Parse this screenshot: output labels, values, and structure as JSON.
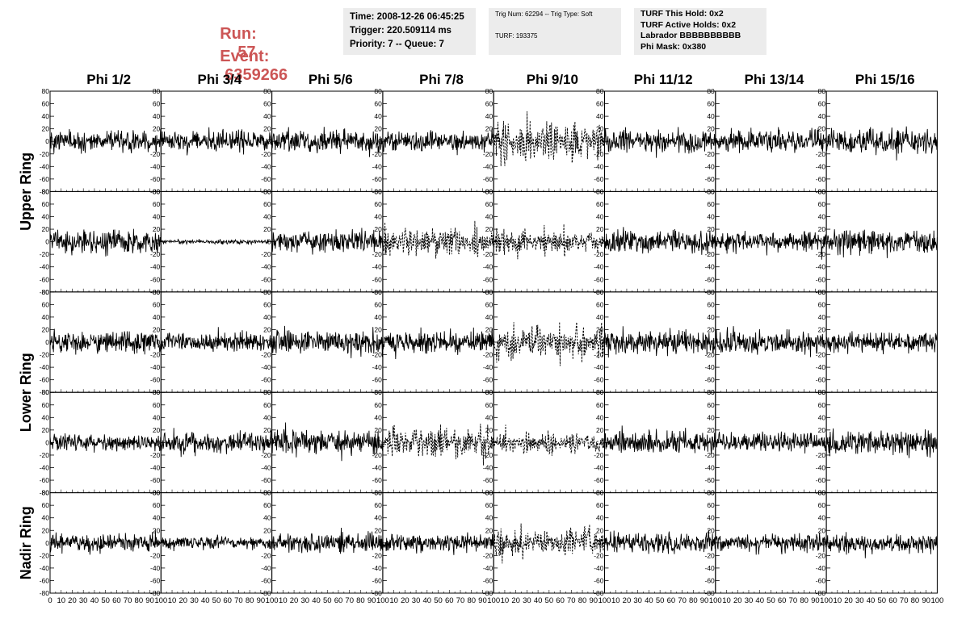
{
  "header": {
    "run_label": "Run:",
    "run_value": "57",
    "event_label": "Event:",
    "event_value": "6359266",
    "accent_color": "#cc5555",
    "box1": [
      "Time: 2008-12-26 06:45:25",
      "Trigger: 220.509114 ms",
      "Priority: 7 -- Queue: 7"
    ],
    "box2_top": "Trig Num: 62294 -- Trig Type: Soft",
    "box2_bottom": "TURF: 193375",
    "box3": [
      "TURF This Hold: 0x2",
      "TURF Active Holds: 0x2",
      "Labrador BBBBBBBBBB",
      "Phi Mask: 0x380"
    ],
    "box_color": "#ececec"
  },
  "chart_data": {
    "type": "line",
    "layout": "grid of 5 rows by 8 columns of waveform panels",
    "column_titles": [
      "Phi 1/2",
      "Phi 3/4",
      "Phi 5/6",
      "Phi 7/8",
      "Phi 9/10",
      "Phi 11/12",
      "Phi 13/14",
      "Phi 15/16"
    ],
    "ring_labels": [
      {
        "label": "Upper Ring",
        "rows": [
          0,
          1
        ]
      },
      {
        "label": "Lower Ring",
        "rows": [
          2,
          3
        ]
      },
      {
        "label": "Nadir Ring",
        "rows": [
          4
        ]
      }
    ],
    "xlim": [
      0,
      100
    ],
    "ylim": [
      -80,
      80
    ],
    "y_ticks": [
      -80,
      -60,
      -40,
      -20,
      0,
      20,
      40,
      60,
      80
    ],
    "x_ticks": [
      0,
      10,
      20,
      30,
      40,
      50,
      60,
      70,
      80,
      90,
      100
    ],
    "grid": false,
    "line_color": "#000000",
    "samples_per_trace": 260,
    "trace_style_note": "solid trace per panel; dashed trace where the channel is highlighted",
    "panels": [
      [
        {
          "amplitude": 14,
          "style": "solid"
        },
        {
          "amplitude": 14,
          "style": "solid"
        },
        {
          "amplitude": 16,
          "style": "solid"
        },
        {
          "amplitude": 15,
          "style": "solid"
        },
        {
          "amplitude": 28,
          "style": "dashed"
        },
        {
          "amplitude": 15,
          "style": "solid"
        },
        {
          "amplitude": 15,
          "style": "solid"
        },
        {
          "amplitude": 16,
          "style": "solid"
        }
      ],
      [
        {
          "amplitude": 17,
          "style": "solid"
        },
        {
          "amplitude": 3,
          "style": "solid"
        },
        {
          "amplitude": 15,
          "style": "solid"
        },
        {
          "amplitude": 20,
          "style": "dashed"
        },
        {
          "amplitude": 18,
          "style": "dashed"
        },
        {
          "amplitude": 16,
          "style": "solid"
        },
        {
          "amplitude": 13,
          "style": "solid"
        },
        {
          "amplitude": 17,
          "style": "solid"
        }
      ],
      [
        {
          "amplitude": 15,
          "style": "solid"
        },
        {
          "amplitude": 13,
          "style": "solid"
        },
        {
          "amplitude": 17,
          "style": "solid"
        },
        {
          "amplitude": 16,
          "style": "solid"
        },
        {
          "amplitude": 24,
          "style": "dashed"
        },
        {
          "amplitude": 17,
          "style": "solid"
        },
        {
          "amplitude": 15,
          "style": "solid"
        },
        {
          "amplitude": 14,
          "style": "solid"
        }
      ],
      [
        {
          "amplitude": 12,
          "style": "solid"
        },
        {
          "amplitude": 15,
          "style": "solid"
        },
        {
          "amplitude": 17,
          "style": "solid"
        },
        {
          "amplitude": 20,
          "style": "dashed"
        },
        {
          "amplitude": 14,
          "style": "dashed"
        },
        {
          "amplitude": 15,
          "style": "solid"
        },
        {
          "amplitude": 13,
          "style": "solid"
        },
        {
          "amplitude": 17,
          "style": "solid"
        }
      ],
      [
        {
          "amplitude": 13,
          "style": "solid"
        },
        {
          "amplitude": 9,
          "style": "solid"
        },
        {
          "amplitude": 14,
          "style": "solid"
        },
        {
          "amplitude": 12,
          "style": "solid"
        },
        {
          "amplitude": 20,
          "style": "dashed"
        },
        {
          "amplitude": 14,
          "style": "solid"
        },
        {
          "amplitude": 13,
          "style": "solid"
        },
        {
          "amplitude": 13,
          "style": "solid"
        }
      ]
    ]
  }
}
